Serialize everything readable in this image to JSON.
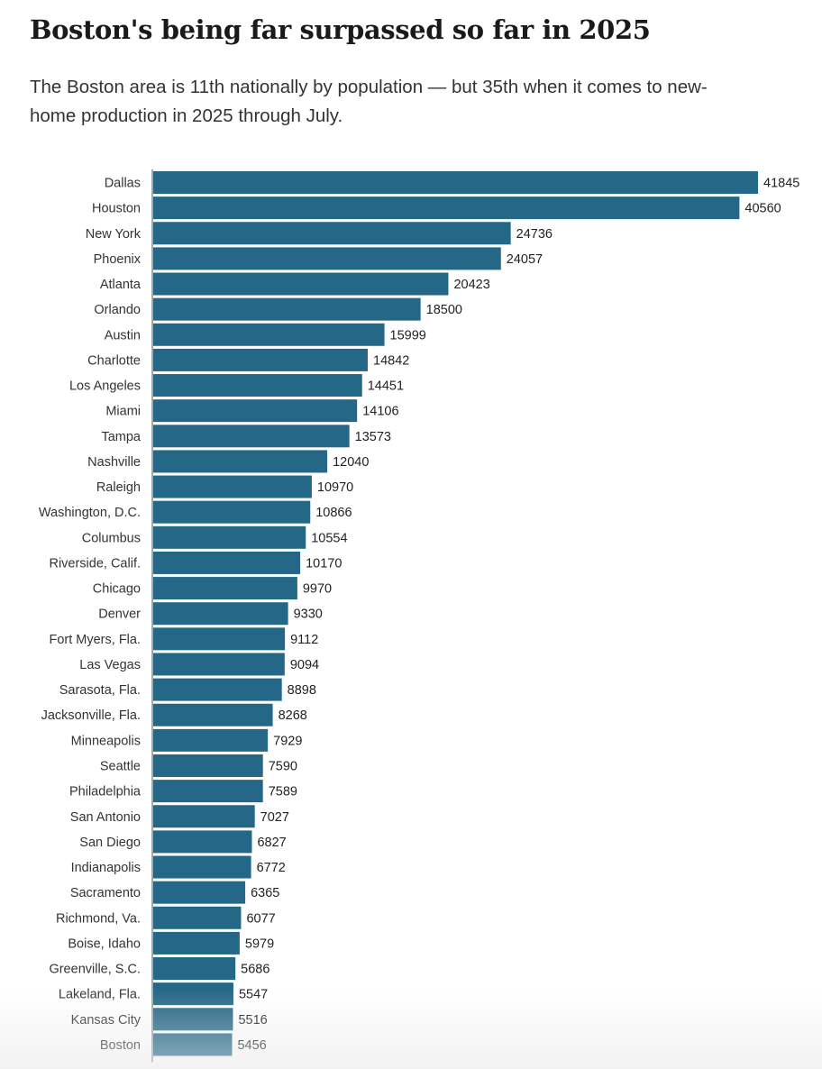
{
  "header": {
    "title": "Boston's being far surpassed so far in 2025",
    "subtitle": "The Boston area is 11th nationally by population — but 35th when it comes to new-home production in 2025 through July."
  },
  "colors": {
    "bar": "#246786",
    "axis": "#888888",
    "label": "#333333",
    "value": "#222222"
  },
  "chart_data": {
    "type": "bar",
    "orientation": "horizontal",
    "title": "Boston's being far surpassed so far in 2025",
    "xlabel": "",
    "ylabel": "",
    "xlim": [
      0,
      41845
    ],
    "categories": [
      "Dallas",
      "Houston",
      "New York",
      "Phoenix",
      "Atlanta",
      "Orlando",
      "Austin",
      "Charlotte",
      "Los Angeles",
      "Miami",
      "Tampa",
      "Nashville",
      "Raleigh",
      "Washington, D.C.",
      "Columbus",
      "Riverside, Calif.",
      "Chicago",
      "Denver",
      "Fort Myers, Fla.",
      "Las Vegas",
      "Sarasota, Fla.",
      "Jacksonville, Fla.",
      "Minneapolis",
      "Seattle",
      "Philadelphia",
      "San Antonio",
      "San Diego",
      "Indianapolis",
      "Sacramento",
      "Richmond, Va.",
      "Boise, Idaho",
      "Greenville, S.C.",
      "Lakeland, Fla.",
      "Kansas City",
      "Boston"
    ],
    "values": [
      41845,
      40560,
      24736,
      24057,
      20423,
      18500,
      15999,
      14842,
      14451,
      14106,
      13573,
      12040,
      10970,
      10866,
      10554,
      10170,
      9970,
      9330,
      9112,
      9094,
      8898,
      8268,
      7929,
      7590,
      7589,
      7027,
      6827,
      6772,
      6365,
      6077,
      5979,
      5686,
      5547,
      5516,
      5456
    ]
  }
}
